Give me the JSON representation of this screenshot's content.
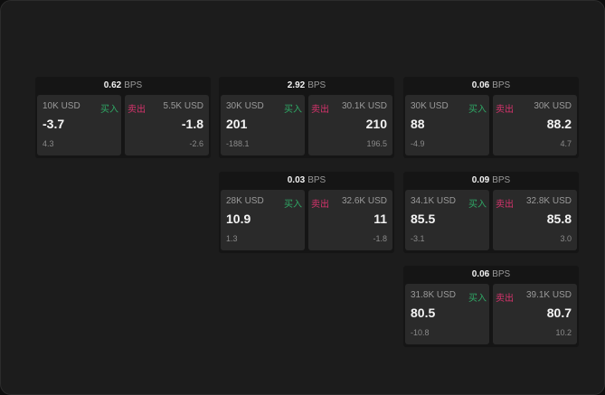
{
  "unit": "BPS",
  "buy_label": "买入",
  "sell_label": "卖出",
  "colors": {
    "buy": "#2fa865",
    "sell": "#d6336c"
  },
  "cards": [
    {
      "spread": "0.62",
      "buy": {
        "size": "10K USD",
        "price": "-3.7",
        "change": "4.3"
      },
      "sell": {
        "size": "5.5K USD",
        "price": "-1.8",
        "change": "-2.6"
      }
    },
    {
      "spread": "2.92",
      "buy": {
        "size": "30K USD",
        "price": "201",
        "change": "-188.1"
      },
      "sell": {
        "size": "30.1K USD",
        "price": "210",
        "change": "196.5"
      }
    },
    {
      "spread": "0.06",
      "buy": {
        "size": "30K USD",
        "price": "88",
        "change": "-4.9"
      },
      "sell": {
        "size": "30K USD",
        "price": "88.2",
        "change": "4.7"
      }
    },
    {
      "spread": "0.03",
      "buy": {
        "size": "28K USD",
        "price": "10.9",
        "change": "1.3"
      },
      "sell": {
        "size": "32.6K USD",
        "price": "11",
        "change": "-1.8"
      }
    },
    {
      "spread": "0.09",
      "buy": {
        "size": "34.1K USD",
        "price": "85.5",
        "change": "-3.1"
      },
      "sell": {
        "size": "32.8K USD",
        "price": "85.8",
        "change": "3.0"
      }
    },
    {
      "spread": "0.06",
      "buy": {
        "size": "31.8K USD",
        "price": "80.5",
        "change": "-10.8"
      },
      "sell": {
        "size": "39.1K USD",
        "price": "80.7",
        "change": "10.2"
      }
    }
  ]
}
